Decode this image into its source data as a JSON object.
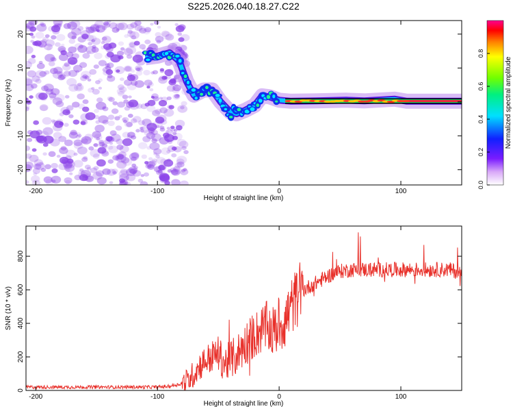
{
  "title": "S225.2026.040.18.27.C22",
  "colors": {
    "line": "#e8302a",
    "axis": "#000000",
    "spectrogram_noise": "#8a40e8"
  },
  "chart_data": [
    {
      "type": "heatmap",
      "name": "spectrogram",
      "xlabel": "Height of straight line (km)",
      "ylabel": "Frequency (Hz)",
      "xlim": [
        -208,
        150
      ],
      "ylim": [
        -24.5,
        24
      ],
      "xticks": [
        -200,
        -100,
        0,
        100
      ],
      "xtick_labels": [
        "-200",
        "-100",
        "0",
        "100"
      ],
      "yticks": [
        20,
        10,
        0,
        -10,
        -20
      ],
      "ytick_labels": [
        "20",
        "10",
        "0",
        "-10",
        "-20"
      ],
      "ridge": {
        "x": [
          -110,
          -100,
          -90,
          -82,
          -76,
          -70,
          -62,
          -55,
          -48,
          -40,
          -35,
          -28,
          -20,
          -14,
          -8,
          0,
          10,
          30,
          55,
          70,
          85,
          95,
          105,
          150
        ],
        "y": [
          13,
          13.5,
          14.5,
          12,
          6,
          2,
          3.5,
          3.5,
          0,
          -3,
          -3.5,
          -2.5,
          -1,
          1.8,
          1.5,
          0.5,
          0.2,
          0.3,
          0.5,
          0.3,
          0.6,
          0.8,
          0.2,
          0.2
        ]
      },
      "colorbar": {
        "label": "Normalized spectral amplitude",
        "range": [
          0,
          1
        ],
        "ticks": [
          0.0,
          0.2,
          0.4,
          0.6,
          0.8
        ],
        "tick_labels": [
          "0.0",
          "0.2",
          "0.4",
          "0.6",
          "0.8"
        ]
      }
    },
    {
      "type": "line",
      "name": "snr",
      "xlabel": "Height of straight line (km)",
      "ylabel": "SNR (10 * v/v)",
      "xlim": [
        -208,
        150
      ],
      "ylim": [
        0,
        980
      ],
      "xticks": [
        -200,
        -100,
        0,
        100
      ],
      "xtick_labels": [
        "-200",
        "-100",
        "0",
        "100"
      ],
      "yticks": [
        0,
        200,
        400,
        600,
        800
      ],
      "ytick_labels": [
        "0",
        "200",
        "400",
        "600",
        "800"
      ],
      "series": [
        {
          "name": "SNR",
          "x": [
            -208,
            -180,
            -150,
            -120,
            -100,
            -90,
            -80,
            -75,
            -70,
            -65,
            -60,
            -55,
            -50,
            -45,
            -40,
            -35,
            -30,
            -25,
            -20,
            -15,
            -10,
            -5,
            0,
            5,
            10,
            15,
            20,
            25,
            30,
            35,
            40,
            45,
            50,
            55,
            60,
            70,
            80,
            90,
            100,
            110,
            120,
            130,
            140,
            150
          ],
          "y": [
            20,
            20,
            20,
            20,
            20,
            25,
            40,
            60,
            100,
            150,
            180,
            200,
            220,
            160,
            180,
            210,
            260,
            300,
            330,
            360,
            380,
            350,
            390,
            420,
            500,
            560,
            600,
            620,
            640,
            660,
            680,
            700,
            710,
            715,
            720,
            720,
            720,
            720,
            720,
            720,
            720,
            720,
            720,
            700
          ]
        }
      ]
    }
  ]
}
